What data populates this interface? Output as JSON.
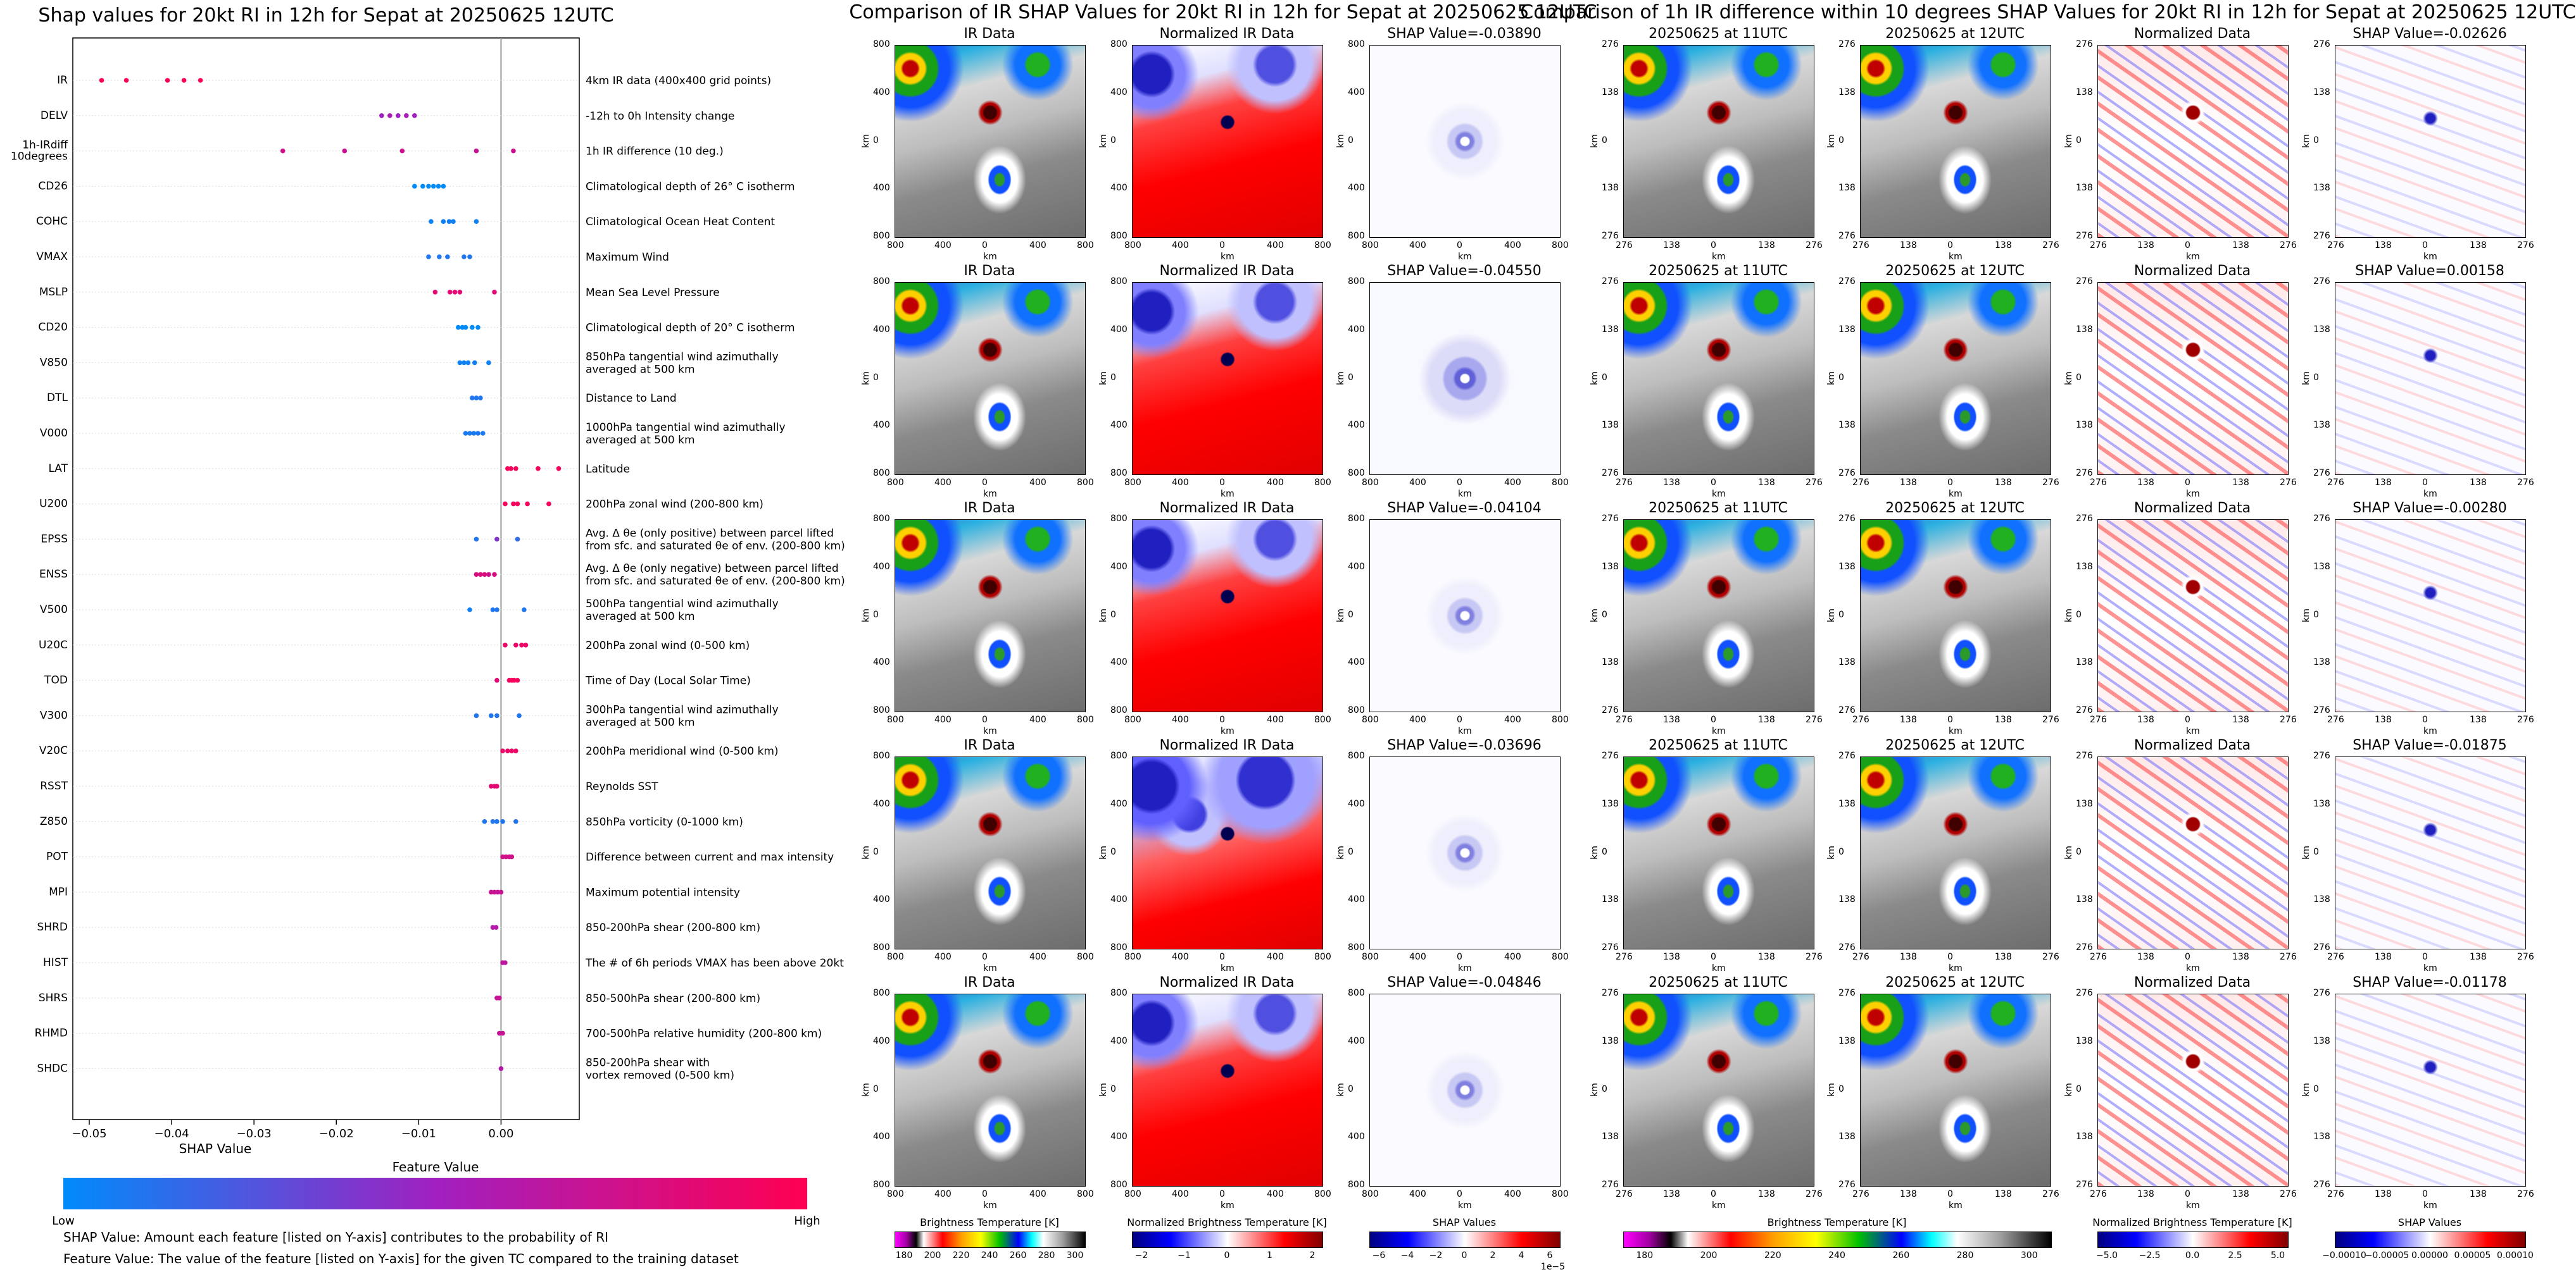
{
  "chart_data": [
    {
      "type": "scatter",
      "subtype": "shap-beeswarm",
      "title": "Shap values for 20kt RI in 12h for Sepat at 20250625 12UTC",
      "xlabel": "SHAP Value",
      "xlim": [
        -0.052,
        0.0095
      ],
      "xticks": [
        -0.05,
        -0.04,
        -0.03,
        -0.02,
        -0.01,
        0.0
      ],
      "xtick_labels": [
        "−0.05",
        "−0.04",
        "−0.03",
        "−0.02",
        "−0.01",
        "0.00"
      ],
      "features": [
        {
          "name": "IR",
          "description": "4km IR data (400x400 grid points)",
          "points": [
            [
              -0.0485,
              1.0
            ],
            [
              -0.0455,
              1.0
            ],
            [
              -0.0405,
              1.0
            ],
            [
              -0.0385,
              1.0
            ],
            [
              -0.0365,
              1.0
            ]
          ]
        },
        {
          "name": "DELV",
          "description": "-12h to 0h Intensity change",
          "points": [
            [
              -0.0145,
              0.5
            ],
            [
              -0.0135,
              0.55
            ],
            [
              -0.0125,
              0.5
            ],
            [
              -0.0115,
              0.55
            ],
            [
              -0.0105,
              0.5
            ]
          ]
        },
        {
          "name": "1h-IRdiff\n10degrees",
          "description": "1h IR difference (10 deg.)",
          "points": [
            [
              -0.0265,
              0.75
            ],
            [
              -0.019,
              0.72
            ],
            [
              -0.012,
              0.74
            ],
            [
              -0.003,
              0.7
            ],
            [
              0.0015,
              0.73
            ]
          ]
        },
        {
          "name": "CD26",
          "description": "Climatological depth of 26° C isotherm",
          "points": [
            [
              -0.0105,
              0.0
            ],
            [
              -0.0095,
              0.0
            ],
            [
              -0.0088,
              0.0
            ],
            [
              -0.0082,
              0.0
            ],
            [
              -0.0076,
              0.0
            ],
            [
              -0.007,
              0.0
            ]
          ]
        },
        {
          "name": "COHC",
          "description": "Climatological Ocean Heat Content",
          "points": [
            [
              -0.0085,
              0.05
            ],
            [
              -0.007,
              0.05
            ],
            [
              -0.0063,
              0.05
            ],
            [
              -0.0058,
              0.05
            ],
            [
              -0.003,
              0.05
            ]
          ]
        },
        {
          "name": "VMAX",
          "description": "Maximum Wind",
          "points": [
            [
              -0.0088,
              0.1
            ],
            [
              -0.0075,
              0.1
            ],
            [
              -0.0065,
              0.1
            ],
            [
              -0.0045,
              0.1
            ],
            [
              -0.0038,
              0.1
            ]
          ]
        },
        {
          "name": "MSLP",
          "description": "Mean Sea Level Pressure",
          "points": [
            [
              -0.008,
              0.85
            ],
            [
              -0.0062,
              0.85
            ],
            [
              -0.0056,
              0.85
            ],
            [
              -0.005,
              0.85
            ],
            [
              -0.0008,
              0.85
            ]
          ]
        },
        {
          "name": "CD20",
          "description": "Climatological depth of 20° C isotherm",
          "points": [
            [
              -0.0052,
              0.0
            ],
            [
              -0.0047,
              0.0
            ],
            [
              -0.0043,
              0.0
            ],
            [
              -0.0035,
              0.0
            ],
            [
              -0.0028,
              0.0
            ]
          ]
        },
        {
          "name": "V850",
          "description": "850hPa tangential wind azimuthally\naveraged at 500 km",
          "points": [
            [
              -0.005,
              0.05
            ],
            [
              -0.0045,
              0.05
            ],
            [
              -0.004,
              0.05
            ],
            [
              -0.0032,
              0.05
            ],
            [
              -0.0015,
              0.05
            ]
          ]
        },
        {
          "name": "DTL",
          "description": "Distance to Land",
          "points": [
            [
              -0.0035,
              0.1
            ],
            [
              -0.003,
              0.1
            ],
            [
              -0.0025,
              0.1
            ]
          ]
        },
        {
          "name": "V000",
          "description": "1000hPa tangential wind azimuthally\naveraged at 500 km",
          "points": [
            [
              -0.0043,
              0.08
            ],
            [
              -0.0038,
              0.08
            ],
            [
              -0.0033,
              0.08
            ],
            [
              -0.0028,
              0.08
            ],
            [
              -0.0022,
              0.08
            ]
          ]
        },
        {
          "name": "LAT",
          "description": "Latitude",
          "points": [
            [
              0.0008,
              0.95
            ],
            [
              0.0012,
              0.95
            ],
            [
              0.0018,
              0.95
            ],
            [
              0.0045,
              0.95
            ],
            [
              0.007,
              0.95
            ]
          ]
        },
        {
          "name": "U200",
          "description": "200hPa zonal wind (200-800 km)",
          "points": [
            [
              0.0005,
              0.95
            ],
            [
              0.0015,
              0.95
            ],
            [
              0.002,
              0.95
            ],
            [
              0.0032,
              0.95
            ],
            [
              0.0058,
              0.95
            ]
          ]
        },
        {
          "name": "EPSS",
          "description": "Avg. Δ θe (only positive) between parcel lifted\nfrom sfc. and saturated θe of env. (200-800 km)",
          "points": [
            [
              -0.003,
              0.1
            ],
            [
              -0.0005,
              0.4
            ],
            [
              0.002,
              0.15
            ]
          ]
        },
        {
          "name": "ENSS",
          "description": "Avg. Δ θe (only negative) between parcel lifted\nfrom sfc. and saturated θe of env. (200-800 km)",
          "points": [
            [
              -0.003,
              0.8
            ],
            [
              -0.0025,
              0.8
            ],
            [
              -0.002,
              0.8
            ],
            [
              -0.0015,
              0.75
            ],
            [
              -0.0008,
              0.8
            ]
          ]
        },
        {
          "name": "V500",
          "description": "500hPa tangential wind azimuthally\naveraged at 500 km",
          "points": [
            [
              -0.0038,
              0.05
            ],
            [
              -0.001,
              0.1
            ],
            [
              -0.0005,
              0.1
            ],
            [
              0.0028,
              0.1
            ]
          ]
        },
        {
          "name": "U20C",
          "description": "200hPa zonal wind (0-500 km)",
          "points": [
            [
              0.0005,
              0.9
            ],
            [
              0.0018,
              0.9
            ],
            [
              0.0025,
              0.9
            ],
            [
              0.003,
              0.9
            ]
          ]
        },
        {
          "name": "TOD",
          "description": "Time of Day (Local Solar Time)",
          "points": [
            [
              -0.0005,
              0.85
            ],
            [
              0.001,
              0.95
            ],
            [
              0.0013,
              0.95
            ],
            [
              0.0016,
              0.95
            ],
            [
              0.002,
              0.95
            ]
          ]
        },
        {
          "name": "V300",
          "description": "300hPa tangential wind azimuthally\naveraged at 500 km",
          "points": [
            [
              -0.003,
              0.1
            ],
            [
              -0.0012,
              0.1
            ],
            [
              -0.0005,
              0.1
            ],
            [
              0.0022,
              0.1
            ]
          ]
        },
        {
          "name": "V20C",
          "description": "200hPa meridional wind (0-500 km)",
          "points": [
            [
              0.0002,
              0.9
            ],
            [
              0.0008,
              0.9
            ],
            [
              0.0013,
              0.9
            ],
            [
              0.0018,
              0.9
            ]
          ]
        },
        {
          "name": "RSST",
          "description": "Reynolds SST",
          "points": [
            [
              -0.0012,
              0.85
            ],
            [
              -0.0008,
              0.85
            ],
            [
              -0.0005,
              0.85
            ]
          ]
        },
        {
          "name": "Z850",
          "description": "850hPa vorticity (0-1000 km)",
          "points": [
            [
              -0.002,
              0.1
            ],
            [
              -0.001,
              0.1
            ],
            [
              -0.0005,
              0.1
            ],
            [
              0.0002,
              0.1
            ],
            [
              0.0018,
              0.1
            ]
          ]
        },
        {
          "name": "POT",
          "description": "Difference between current and max intensity",
          "points": [
            [
              0.0002,
              0.75
            ],
            [
              0.0006,
              0.75
            ],
            [
              0.001,
              0.75
            ],
            [
              0.0013,
              0.75
            ]
          ]
        },
        {
          "name": "MPI",
          "description": "Maximum potential intensity",
          "points": [
            [
              -0.0012,
              0.7
            ],
            [
              -0.0008,
              0.7
            ],
            [
              -0.0004,
              0.7
            ],
            [
              0.0,
              0.7
            ]
          ]
        },
        {
          "name": "SHRD",
          "description": "850-200hPa shear (200-800 km)",
          "points": [
            [
              -0.001,
              0.6
            ],
            [
              -0.0006,
              0.6
            ]
          ]
        },
        {
          "name": "HIST",
          "description": "The # of 6h periods VMAX has been above 20kt",
          "points": [
            [
              0.0002,
              0.65
            ],
            [
              0.0005,
              0.65
            ]
          ]
        },
        {
          "name": "SHRS",
          "description": "850-500hPa shear (200-800 km)",
          "points": [
            [
              -0.0005,
              0.7
            ],
            [
              -0.0002,
              0.7
            ]
          ]
        },
        {
          "name": "RHMD",
          "description": "700-500hPa relative humidity (200-800 km)",
          "points": [
            [
              -0.0002,
              0.7
            ],
            [
              0.0002,
              0.7
            ]
          ]
        },
        {
          "name": "SHDC",
          "description": "850-200hPa shear with\nvortex removed (0-500 km)",
          "points": [
            [
              0.0,
              0.6
            ]
          ]
        }
      ],
      "colorbar": {
        "title": "Feature Value",
        "low_label": "Low",
        "high_label": "High",
        "low_color": "#008bfb",
        "high_color": "#ff0052"
      }
    }
  ],
  "footnotes": {
    "shap_value": "SHAP Value: Amount each feature [listed on Y-axis] contributes to the probability of RI",
    "feature_value": "Feature Value: The value of the feature [listed on Y-axis] for the given TC compared to the training dataset"
  },
  "ir_section": {
    "title": "Comparison of IR SHAP Values for 20kt RI in 12h for Sepat at 20250625 12UTC",
    "column_titles": [
      "IR Data",
      "Normalized IR Data"
    ],
    "shap_titles": [
      "SHAP Value=-0.03890",
      "SHAP Value=-0.04550",
      "SHAP Value=-0.04104",
      "SHAP Value=-0.03696",
      "SHAP Value=-0.04846"
    ],
    "axis_label": "km",
    "ticks": [
      "800",
      "400",
      "0",
      "400",
      "800"
    ],
    "colorbars": [
      {
        "title": "Brightness Temperature [K]",
        "ticks": [
          "180",
          "200",
          "220",
          "240",
          "260",
          "280",
          "300"
        ]
      },
      {
        "title": "Normalized Brightness Temperature [K]",
        "ticks": [
          "−2",
          "−1",
          "0",
          "1",
          "2"
        ]
      },
      {
        "title": "SHAP Values",
        "ticks": [
          "−6",
          "−4",
          "−2",
          "0",
          "2",
          "4",
          "6"
        ],
        "offset": "1e−5"
      }
    ]
  },
  "irdiff_section": {
    "title": "Comparison of 1h IR difference within 10 degrees SHAP Values for 20kt RI in 12h for Sepat at 20250625 12UTC",
    "column_titles": [
      "20250625 at 11UTC",
      "20250625 at 12UTC",
      "Normalized Data"
    ],
    "shap_titles": [
      "SHAP Value=-0.02626",
      "SHAP Value=0.00158",
      "SHAP Value=-0.00280",
      "SHAP Value=-0.01875",
      "SHAP Value=-0.01178"
    ],
    "axis_label": "km",
    "ticks": [
      "276",
      "138",
      "0",
      "138",
      "276"
    ],
    "colorbars": [
      {
        "title": "Brightness Temperature [K]",
        "ticks": [
          "180",
          "200",
          "220",
          "240",
          "260",
          "280",
          "300"
        ]
      },
      {
        "title": "Normalized Brightness Temperature [K]",
        "ticks": [
          "−5.0",
          "−2.5",
          "0.0",
          "2.5",
          "5.0"
        ]
      },
      {
        "title": "SHAP Values",
        "ticks": [
          "−0.00010",
          "−0.00005",
          "0.00000",
          "0.00005",
          "0.00010"
        ]
      }
    ]
  },
  "colors": {
    "low": "#008bfb",
    "high": "#ff0052",
    "mid": "#a020c0"
  }
}
